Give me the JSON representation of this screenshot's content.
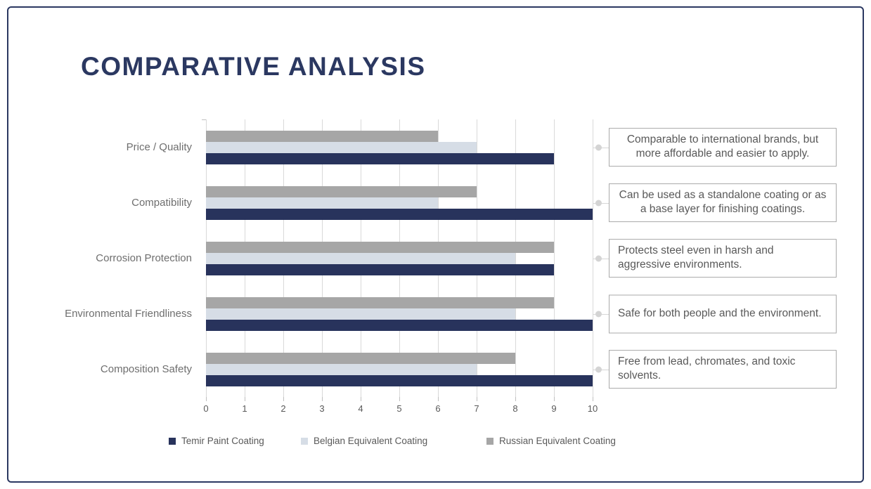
{
  "title": "COMPARATIVE ANALYSIS",
  "colors": {
    "navy": "#28335c",
    "light_blue": "#d6dde6",
    "gray": "#a6a6a6",
    "grid": "#d9d9d9",
    "text_gray": "#595959",
    "frame_border": "#2b3861",
    "annotation_border": "#a9a9a9"
  },
  "chart_data": {
    "type": "bar",
    "orientation": "horizontal",
    "title": "",
    "xlabel": "",
    "ylabel": "",
    "xlim": [
      0,
      10
    ],
    "x_ticks": [
      0,
      1,
      2,
      3,
      4,
      5,
      6,
      7,
      8,
      9,
      10
    ],
    "grid": true,
    "legend_position": "bottom",
    "categories": [
      "Price / Quality",
      "Compatibility",
      "Corrosion Protection",
      "Environmental Friendliness",
      "Composition Safety"
    ],
    "series": [
      {
        "name": "Temir Paint Coating",
        "color": "#28335c",
        "values": [
          9,
          10,
          9,
          10,
          10
        ]
      },
      {
        "name": "Belgian Equivalent Coating",
        "color": "#d6dde6",
        "values": [
          7,
          6,
          8,
          8,
          7
        ]
      },
      {
        "name": "Russian Equivalent Coating",
        "color": "#a6a6a6",
        "values": [
          6,
          7,
          9,
          9,
          8
        ]
      }
    ],
    "bar_order_top_to_bottom": [
      "Russian Equivalent Coating",
      "Belgian Equivalent Coating",
      "Temir Paint Coating"
    ]
  },
  "annotations": [
    "Comparable to international brands, but more affordable and easier to apply.",
    "Can be used as a standalone coating or as a base layer for finishing coatings.",
    "Protects steel even in harsh and aggressive environments.",
    "Safe for both people and the environment.",
    "Free from lead, chromates, and toxic solvents."
  ]
}
